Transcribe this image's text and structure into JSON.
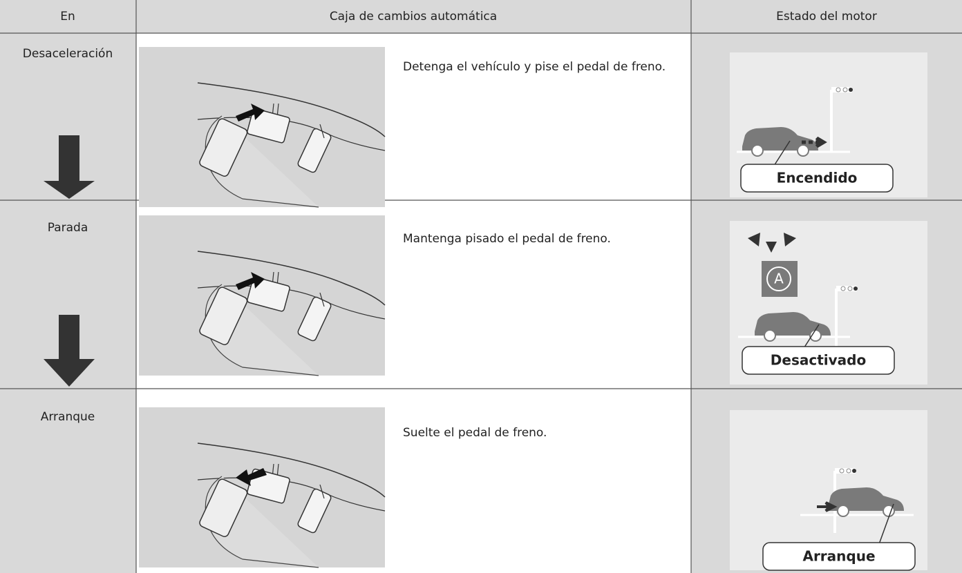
{
  "header": {
    "columns": [
      "En",
      "Caja de cambios automática",
      "Estado del motor"
    ]
  },
  "rows": [
    {
      "step": "Desaceleración",
      "instruction": "Detenga el vehículo y pise el pedal de freno.",
      "state": "Encendido"
    },
    {
      "step": "Parada",
      "instruction": "Mantenga pisado el pedal de freno.",
      "state": "Desactivado"
    },
    {
      "step": "Arranque",
      "instruction": "Suelte el pedal de freno.",
      "state": "Arranque"
    }
  ]
}
